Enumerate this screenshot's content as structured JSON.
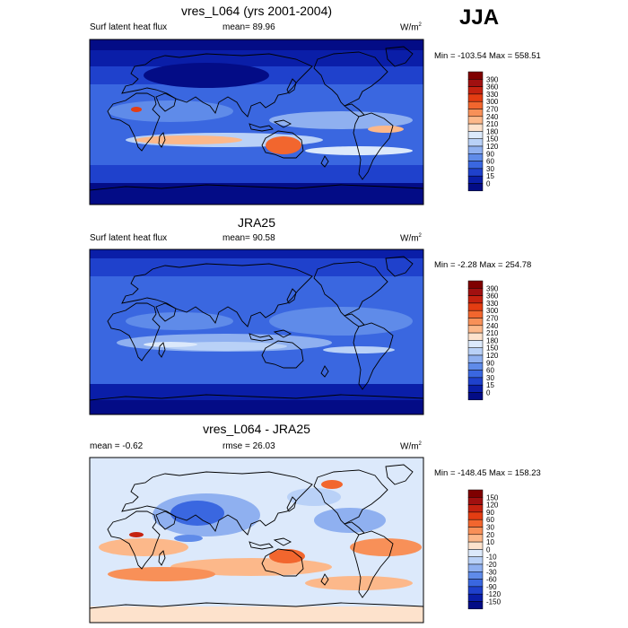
{
  "season": "JJA",
  "panels": [
    {
      "title": "vres_L064 (yrs 2001-2004)",
      "left_text": "Surf latent heat flux",
      "center_text": "mean=  89.96",
      "units": "W/m",
      "units_sup": "2",
      "minmax": "Min = -103.54 Max = 558.51",
      "colorbar_labels": [
        "390",
        "360",
        "330",
        "300",
        "270",
        "240",
        "210",
        "180",
        "150",
        "120",
        "90",
        "60",
        "30",
        "15",
        "0"
      ]
    },
    {
      "title": "JRA25",
      "left_text": "Surf latent heat flux",
      "center_text": "mean=  90.58",
      "units": "W/m",
      "units_sup": "2",
      "minmax": "Min =  -2.28 Max = 254.78",
      "colorbar_labels": [
        "390",
        "360",
        "330",
        "300",
        "270",
        "240",
        "210",
        "180",
        "150",
        "120",
        "90",
        "60",
        "30",
        "15",
        "0"
      ]
    },
    {
      "title": "vres_L064 - JRA25",
      "left_text": "mean =  -0.62",
      "center_text": "rmse =  26.03",
      "units": "W/m",
      "units_sup": "2",
      "minmax": "Min = -148.45 Max = 158.23",
      "colorbar_labels": [
        "150",
        "120",
        "90",
        "60",
        "30",
        "20",
        "10",
        "0",
        "-10",
        "-20",
        "-30",
        "-60",
        "-90",
        "-120",
        "-150"
      ]
    }
  ],
  "colors": {
    "seq": [
      "#7f0000",
      "#a11010",
      "#c52210",
      "#e43d12",
      "#f2662e",
      "#f89058",
      "#fcb88a",
      "#fde2cc",
      "#dce9fb",
      "#b9d1f7",
      "#8fb0f0",
      "#5f8be9",
      "#3a67e0",
      "#1f41cc",
      "#0a1ea8",
      "#030c86"
    ],
    "div": [
      "#7f0000",
      "#a11010",
      "#c52210",
      "#e43d12",
      "#f2662e",
      "#f89058",
      "#fcb88a",
      "#fde2cc",
      "#dce9fb",
      "#b9d1f7",
      "#8fb0f0",
      "#5f8be9",
      "#3a67e0",
      "#1f41cc",
      "#0a1ea8",
      "#030c86"
    ]
  }
}
